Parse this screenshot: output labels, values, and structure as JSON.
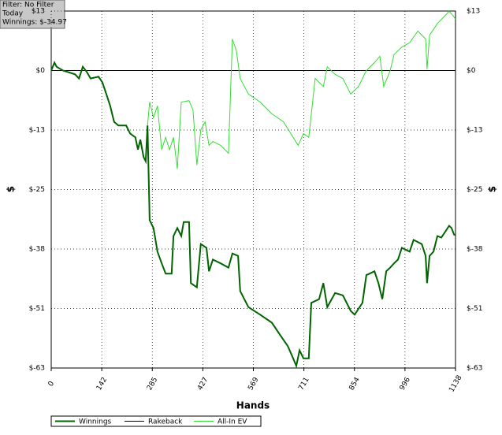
{
  "info": {
    "filter": "Filter: No Filter",
    "period": "Today",
    "winnings": "Winnings: $-34.97"
  },
  "chart_data": {
    "type": "line",
    "xlabel": "Hands",
    "ylabel": "$",
    "grid": true,
    "xlim": [
      0,
      1138
    ],
    "ylim": [
      -63.25,
      12.65
    ],
    "xticks": [
      0,
      {
        "value": 142.25,
        "label": "142"
      },
      {
        "value": 284.5,
        "label": "285"
      },
      {
        "value": 426.75,
        "label": "427"
      },
      569,
      {
        "value": 711.25,
        "label": "711"
      },
      {
        "value": 853.5,
        "label": "854"
      },
      {
        "value": 995.75,
        "label": "996"
      },
      1138
    ],
    "yticks": [
      {
        "value": 12.65,
        "label": "$13"
      },
      {
        "value": 0,
        "label": "$0"
      },
      {
        "value": -12.65,
        "label": "$-13"
      },
      {
        "value": -25.3,
        "label": "$-25"
      },
      {
        "value": -37.95,
        "label": "$-38"
      },
      {
        "value": -50.6,
        "label": "$-51"
      },
      {
        "value": -63.25,
        "label": "$-63"
      }
    ],
    "series": [
      {
        "name": "Winnings",
        "color": "#006400",
        "width": 2,
        "x": [
          0,
          9,
          15,
          33,
          67,
          78,
          89,
          100,
          111,
          133,
          144,
          155,
          166,
          177,
          189,
          211,
          222,
          237,
          244,
          251,
          260,
          266,
          271,
          277,
          288,
          299,
          311,
          322,
          339,
          344,
          355,
          366,
          373,
          388,
          393,
          410,
          421,
          437,
          444,
          455,
          477,
          499,
          510,
          526,
          532,
          555,
          588,
          621,
          643,
          666,
          681,
          690,
          699,
          710,
          725,
          732,
          754,
          766,
          777,
          799,
          821,
          843,
          854,
          876,
          887,
          910,
          921,
          932,
          943,
          954,
          965,
          976,
          987,
          1009,
          1020,
          1043,
          1054,
          1058,
          1065,
          1076,
          1087,
          1098,
          1109,
          1120,
          1127,
          1134,
          1138
        ],
        "values": [
          0,
          1.7,
          0.8,
          0,
          -0.8,
          -1.7,
          0.8,
          -0.3,
          -1.7,
          -1.3,
          -2.5,
          -5,
          -7.5,
          -10.9,
          -11.7,
          -11.7,
          -13.4,
          -14.2,
          -16.8,
          -14.7,
          -18.4,
          -19.3,
          -11.7,
          -31.8,
          -33.5,
          -38.5,
          -41,
          -43.2,
          -43.2,
          -35.2,
          -33.5,
          -35.2,
          -32.2,
          -32.2,
          -45.2,
          -46.1,
          -36.9,
          -37.7,
          -42.7,
          -40.2,
          -41,
          -41.9,
          -38.9,
          -39.4,
          -46.9,
          -50.3,
          -51.9,
          -53.6,
          -56.1,
          -58.6,
          -61.2,
          -62.8,
          -59.5,
          -61.2,
          -61.2,
          -49.4,
          -48.6,
          -45.2,
          -50.3,
          -47.3,
          -47.8,
          -51.1,
          -51.9,
          -49.4,
          -43.5,
          -42.7,
          -45.2,
          -48.6,
          -42.7,
          -41.9,
          -41,
          -40.2,
          -37.7,
          -38.5,
          -36,
          -36.9,
          -39.4,
          -45.2,
          -39.4,
          -38.5,
          -35.2,
          -35.5,
          -34.3,
          -33,
          -33.5,
          -34.9,
          -34.97
        ]
      },
      {
        "name": "Rakeback",
        "color": "#000000",
        "width": 1,
        "x": [
          0,
          1138
        ],
        "values": [
          0,
          0
        ]
      },
      {
        "name": "All-In EV",
        "color": "#33dd33",
        "width": 1,
        "x": [
          0,
          9,
          15,
          33,
          67,
          78,
          89,
          100,
          111,
          133,
          144,
          155,
          166,
          177,
          189,
          211,
          222,
          237,
          244,
          251,
          260,
          266,
          271,
          277,
          288,
          299,
          311,
          322,
          333,
          344,
          355,
          366,
          388,
          399,
          410,
          421,
          433,
          444,
          455,
          477,
          499,
          510,
          521,
          532,
          555,
          588,
          621,
          654,
          681,
          695,
          710,
          725,
          743,
          766,
          777,
          799,
          821,
          843,
          865,
          887,
          910,
          925,
          936,
          954,
          965,
          987,
          1009,
          1032,
          1054,
          1058,
          1065,
          1087,
          1109,
          1120,
          1131,
          1138
        ],
        "values": [
          0,
          1.7,
          0.8,
          0,
          -0.8,
          -1.7,
          0.8,
          -0.3,
          -1.7,
          -1.3,
          -2.5,
          -5,
          -7.5,
          -10.9,
          -11.7,
          -11.7,
          -13.4,
          -14.2,
          -16.8,
          -14.7,
          -18.4,
          -19.3,
          -11.7,
          -6.7,
          -10,
          -7.5,
          -16.8,
          -14.2,
          -16.8,
          -14.2,
          -20.9,
          -6.7,
          -6.4,
          -8.4,
          -20.1,
          -12.6,
          -10.9,
          -15.9,
          -15.1,
          -15.9,
          -17.6,
          6.7,
          4.2,
          -1.7,
          -5,
          -6.7,
          -9.2,
          -10.9,
          -14.2,
          -15.9,
          -13.4,
          -14.2,
          -1.7,
          -3.4,
          0.8,
          -0.8,
          -1.7,
          -5,
          -3.4,
          0,
          1.7,
          3,
          -3.4,
          0,
          3.4,
          5,
          5.9,
          8.4,
          6.7,
          0.3,
          7.5,
          10,
          11.7,
          12.6,
          11.7,
          10.9
        ]
      }
    ]
  }
}
